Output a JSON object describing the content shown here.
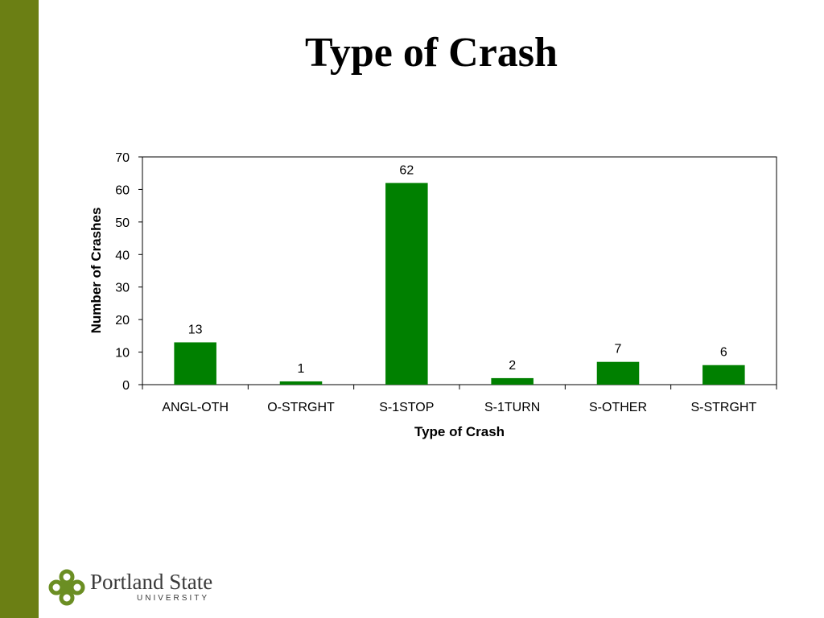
{
  "slide": {
    "title": "Type of Crash",
    "band_color": "#6b7f14"
  },
  "chart_data": {
    "type": "bar",
    "categories": [
      "ANGL-OTH",
      "O-STRGHT",
      "S-1STOP",
      "S-1TURN",
      "S-OTHER",
      "S-STRGHT"
    ],
    "values": [
      13,
      1,
      62,
      2,
      7,
      6
    ],
    "title": "",
    "xlabel": "Type of Crash",
    "ylabel": "Number of Crashes",
    "ylim": [
      0,
      70
    ],
    "yticks": [
      0,
      10,
      20,
      30,
      40,
      50,
      60,
      70
    ],
    "grid": false,
    "legend": "none",
    "bar_color": "#008000"
  },
  "logo": {
    "name": "Portland State",
    "sub": "UNIVERSITY",
    "icon": "psu-logo-icon",
    "color": "#6b8e23"
  }
}
